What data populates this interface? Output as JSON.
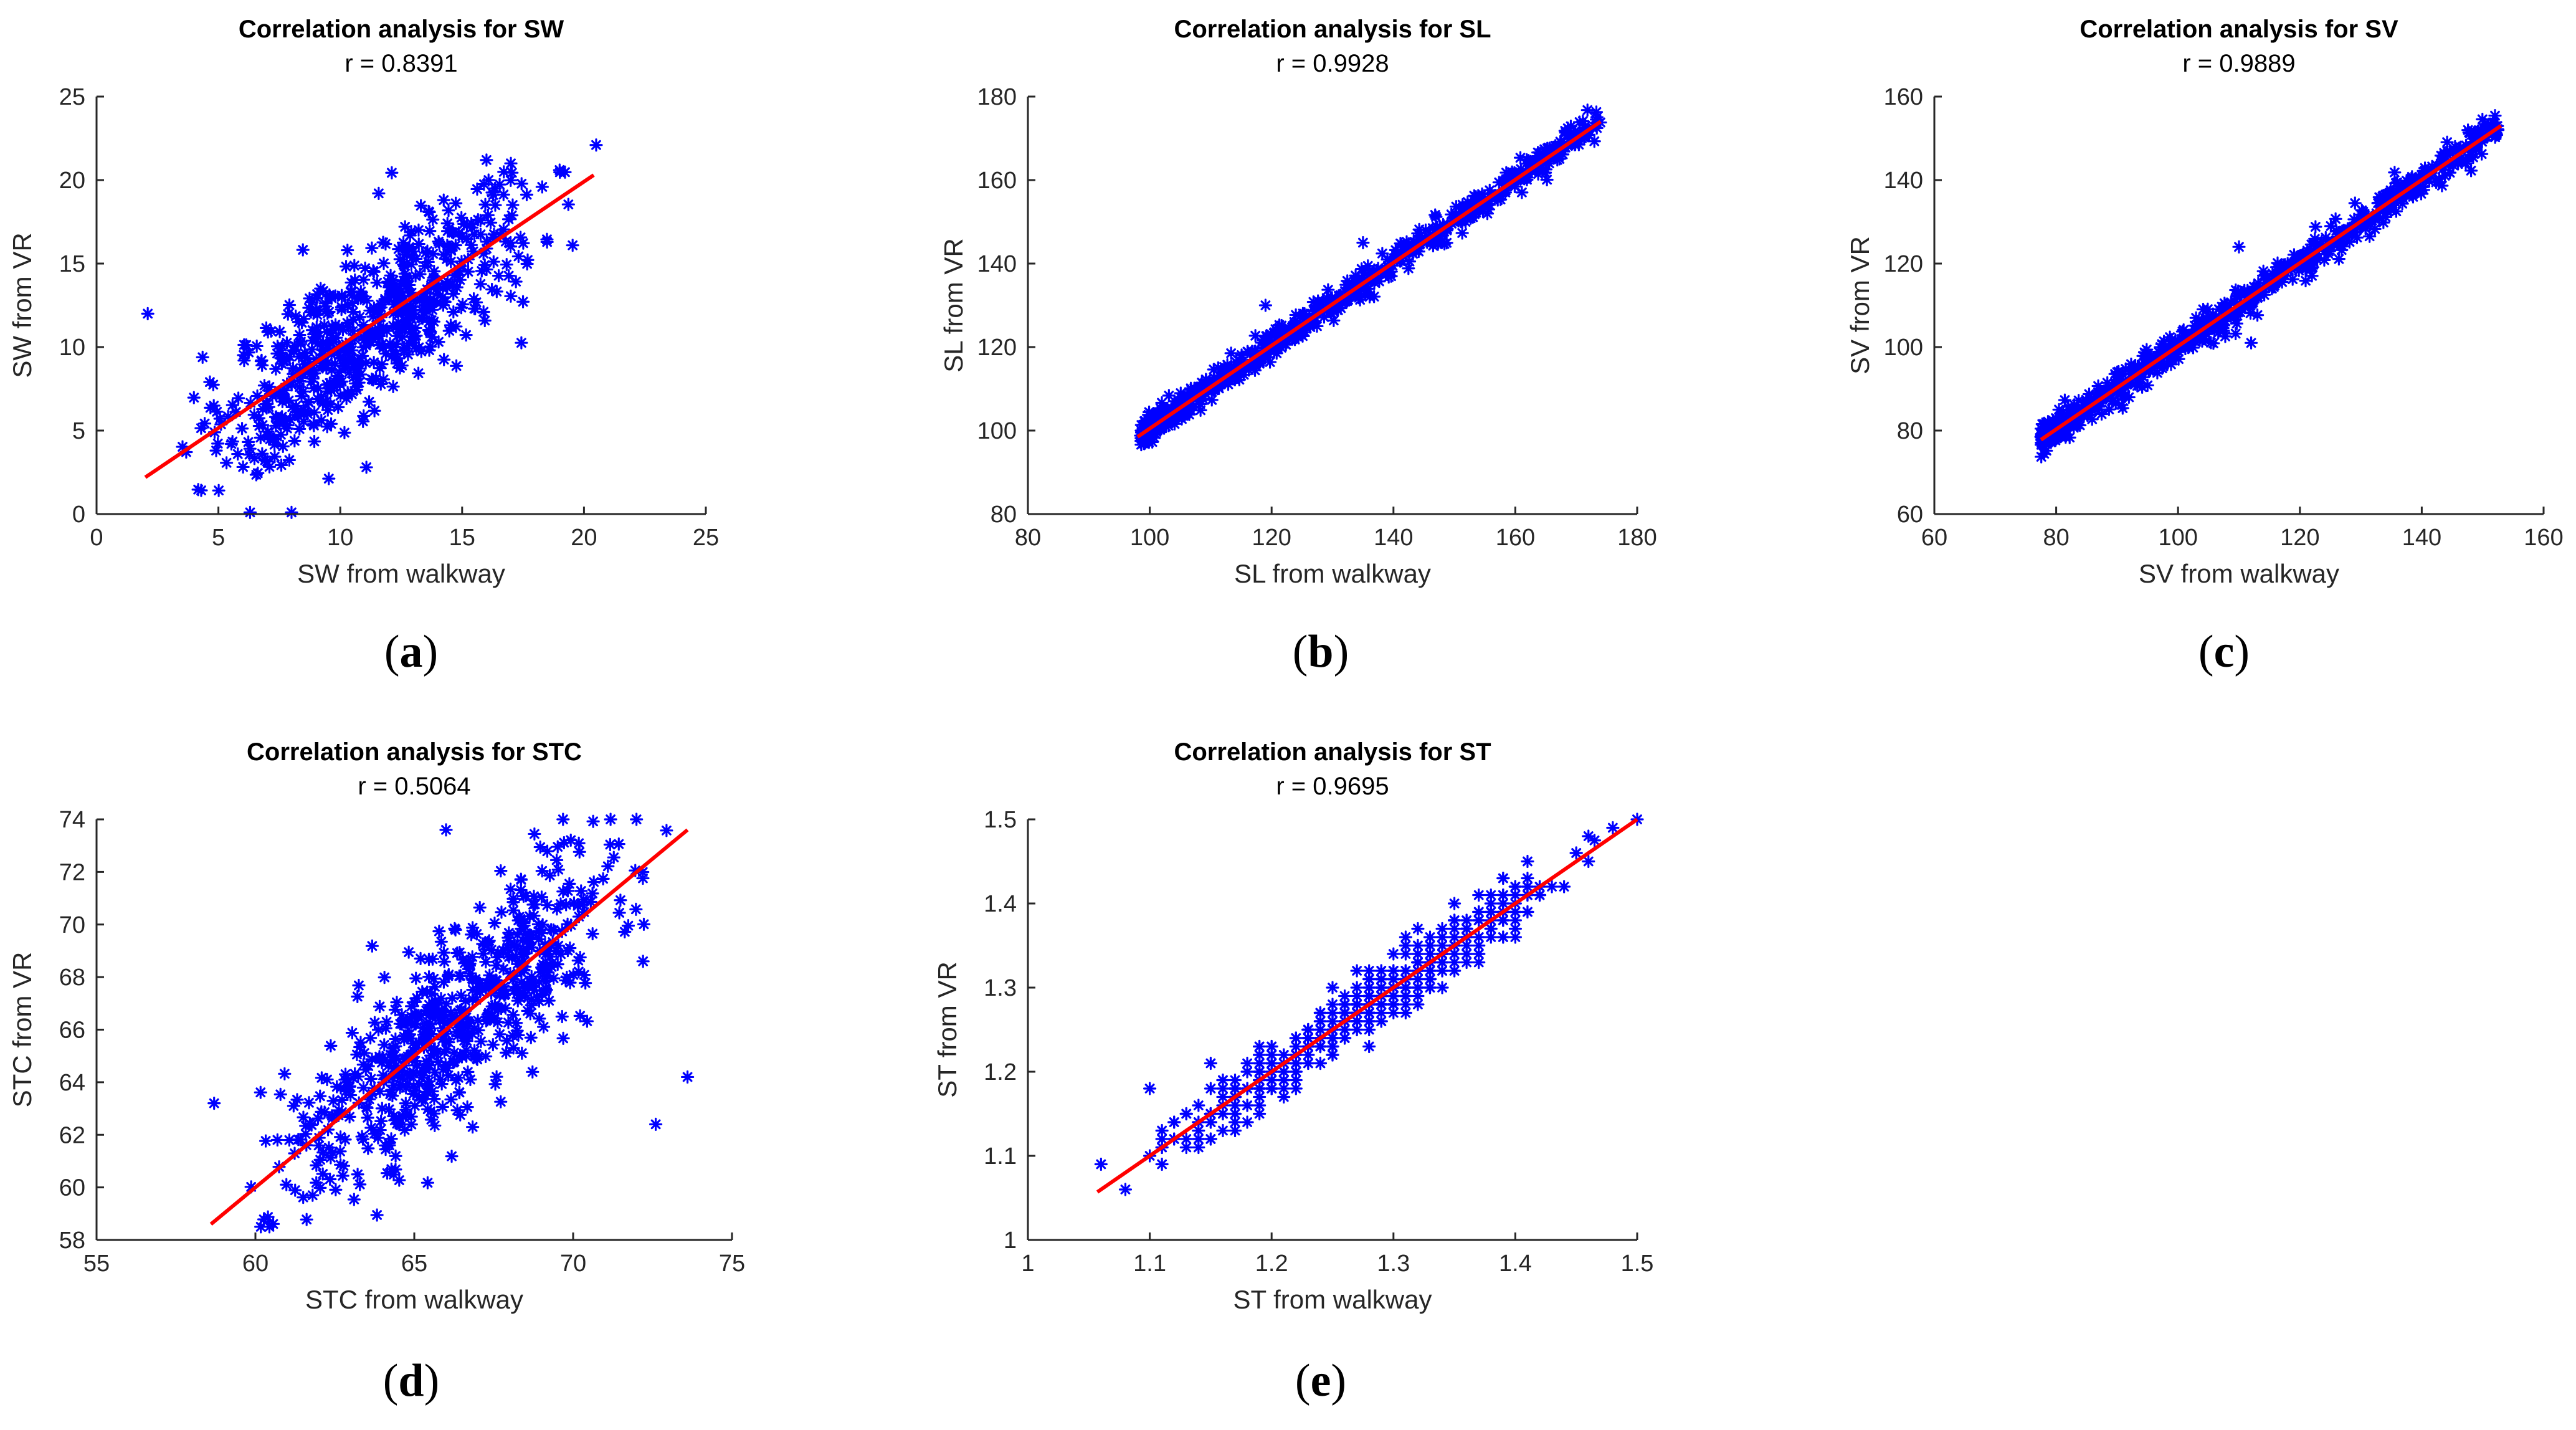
{
  "chart_data": [
    {
      "type": "scatter",
      "id": "a",
      "caption_letter": "a",
      "title": "Correlation analysis for SW",
      "r_label": "r = 0.8391",
      "xlabel": "SW from walkway",
      "ylabel": "SW from VR",
      "xlim": [
        0,
        25
      ],
      "ylim": [
        0,
        25
      ],
      "xticks": [
        0,
        5,
        10,
        15,
        20,
        25
      ],
      "yticks": [
        0,
        5,
        10,
        15,
        20,
        25
      ],
      "fit_line": {
        "x": [
          2.0,
          20.4
        ],
        "y": [
          2.2,
          20.3
        ]
      },
      "points": {
        "count": 650,
        "x_range": [
          2.0,
          20.5
        ],
        "residual_sd": 2.4,
        "seed": 11,
        "extremes": [
          [
            2.1,
            12.0
          ],
          [
            20.5,
            22.1
          ],
          [
            16.0,
            21.2
          ],
          [
            19.0,
            20.6
          ],
          [
            17.0,
            21.0
          ],
          [
            8.0,
            0.1
          ],
          [
            6.3,
            0.1
          ]
        ],
        "clip": [
          0,
          23
        ]
      },
      "series_color": "#0000ff",
      "fit_color": "#ff0000"
    },
    {
      "type": "scatter",
      "id": "b",
      "caption_letter": "b",
      "title": "Correlation analysis for SL",
      "r_label": "r = 0.9928",
      "xlabel": "SL from walkway",
      "ylabel": "SL from VR",
      "xlim": [
        80,
        180
      ],
      "ylim": [
        80,
        180
      ],
      "xticks": [
        80,
        100,
        120,
        140,
        160,
        180
      ],
      "yticks": [
        80,
        100,
        120,
        140,
        160,
        180
      ],
      "fit_line": {
        "x": [
          98.0,
          174.0
        ],
        "y": [
          98.5,
          174.0
        ]
      },
      "points": {
        "count": 700,
        "x_range": [
          98.5,
          174.0
        ],
        "residual_sd": 1.8,
        "seed": 23,
        "extremes": [
          [
            98.5,
            98.8
          ],
          [
            171.5,
            173.0
          ],
          [
            119.0,
            130.0
          ],
          [
            135.0,
            145.0
          ]
        ],
        "clip": [
          80,
          180
        ]
      },
      "series_color": "#0000ff",
      "fit_color": "#ff0000"
    },
    {
      "type": "scatter",
      "id": "c",
      "caption_letter": "c",
      "title": "Correlation analysis for SV",
      "r_label": "r = 0.9889",
      "xlabel": "SV from walkway",
      "ylabel": "SV from VR",
      "xlim": [
        60,
        160
      ],
      "ylim": [
        60,
        160
      ],
      "xticks": [
        60,
        80,
        100,
        120,
        140,
        160
      ],
      "yticks": [
        60,
        80,
        100,
        120,
        140,
        160
      ],
      "fit_line": {
        "x": [
          77.5,
          153.0
        ],
        "y": [
          77.8,
          153.0
        ]
      },
      "points": {
        "count": 700,
        "x_range": [
          77.5,
          152.5
        ],
        "residual_sd": 2.0,
        "seed": 37,
        "extremes": [
          [
            77.5,
            78.5
          ],
          [
            152.5,
            152.0
          ],
          [
            112.0,
            101.0
          ],
          [
            110.0,
            124.0
          ]
        ],
        "clip": [
          60,
          160
        ]
      },
      "series_color": "#0000ff",
      "fit_color": "#ff0000"
    },
    {
      "type": "scatter",
      "id": "d",
      "caption_letter": "d",
      "title": "Correlation analysis for STC",
      "r_label": "r = 0.5064",
      "xlabel": "STC from walkway",
      "ylabel": "STC from VR",
      "xlim": [
        55,
        75
      ],
      "ylim": [
        58,
        74
      ],
      "xticks": [
        55,
        60,
        65,
        70,
        75
      ],
      "yticks": [
        58,
        60,
        62,
        64,
        66,
        68,
        70,
        72,
        74
      ],
      "fit_line": {
        "x": [
          58.6,
          73.6
        ],
        "y": [
          58.6,
          73.6
        ]
      },
      "points": {
        "count": 650,
        "x_range": [
          58.7,
          73.6
        ],
        "residual_sd": 1.7,
        "seed": 53,
        "extremes": [
          [
            66.0,
            73.6
          ],
          [
            73.6,
            64.2
          ],
          [
            72.6,
            62.4
          ],
          [
            58.7,
            63.2
          ],
          [
            61.8,
            59.7
          ],
          [
            72.2,
            68.6
          ]
        ],
        "clip": [
          58.5,
          74
        ]
      },
      "series_color": "#0000ff",
      "fit_color": "#ff0000"
    },
    {
      "type": "scatter",
      "id": "e",
      "caption_letter": "e",
      "title": "Correlation analysis for ST",
      "r_label": "r = 0.9695",
      "xlabel": "ST from walkway",
      "ylabel": "ST from VR",
      "xlim": [
        1,
        1.5
      ],
      "ylim": [
        1,
        1.5
      ],
      "xticks": [
        1,
        1.1,
        1.2,
        1.3,
        1.4,
        1.5
      ],
      "yticks": [
        1,
        1.1,
        1.2,
        1.3,
        1.4,
        1.5
      ],
      "fit_line": {
        "x": [
          1.057,
          1.5
        ],
        "y": [
          1.057,
          1.5
        ]
      },
      "points": {
        "count": 600,
        "x_range": [
          1.06,
          1.5
        ],
        "residual_sd": 0.018,
        "grid_step": 0.01,
        "seed": 71,
        "extremes": [
          [
            1.06,
            1.09
          ],
          [
            1.5,
            1.5
          ],
          [
            1.465,
            1.475
          ],
          [
            1.1,
            1.18
          ],
          [
            1.35,
            1.4
          ],
          [
            1.41,
            1.41
          ]
        ],
        "clip": [
          1,
          1.5
        ]
      },
      "series_color": "#0000ff",
      "fit_color": "#ff0000"
    }
  ]
}
